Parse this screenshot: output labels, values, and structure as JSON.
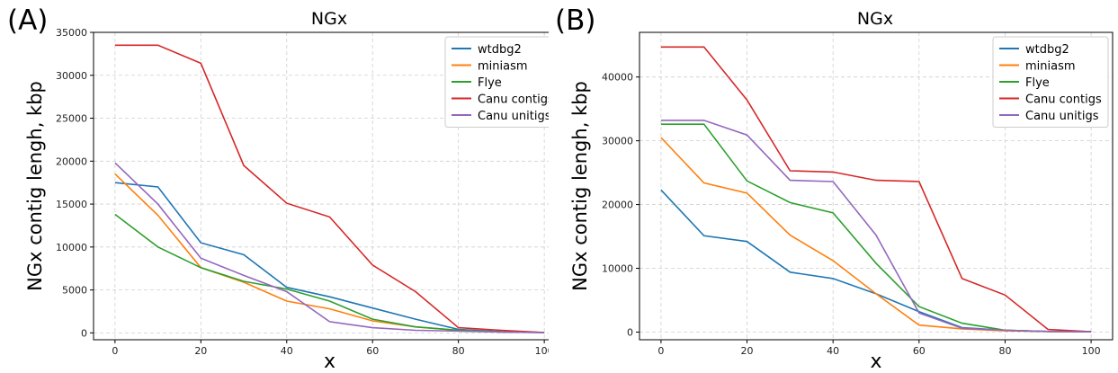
{
  "chart_data": [
    {
      "type": "line",
      "panel_label": "(A)",
      "title": "NGx",
      "xlabel": "x",
      "ylabel": "NGx contig lengh, kbp",
      "xlim": [
        -5,
        105
      ],
      "ylim": [
        -800,
        35000
      ],
      "xticks": [
        0,
        20,
        40,
        60,
        80,
        100
      ],
      "yticks": [
        0,
        5000,
        10000,
        15000,
        20000,
        25000,
        30000,
        35000
      ],
      "grid": true,
      "legend_position": "top-right",
      "x": [
        0,
        10,
        20,
        30,
        40,
        50,
        60,
        70,
        80,
        90,
        100
      ],
      "series": [
        {
          "name": "wtdbg2",
          "color": "#1f77b4",
          "values": [
            17500,
            17000,
            10500,
            9100,
            5300,
            4200,
            2900,
            1600,
            400,
            150,
            50
          ]
        },
        {
          "name": "miniasm",
          "color": "#ff7f0e",
          "values": [
            18500,
            13700,
            7600,
            5900,
            3700,
            2800,
            1400,
            700,
            300,
            100,
            50
          ]
        },
        {
          "name": "Flye",
          "color": "#2ca02c",
          "values": [
            13800,
            10000,
            7600,
            6000,
            5100,
            3700,
            1600,
            700,
            300,
            100,
            50
          ]
        },
        {
          "name": "Canu contigs",
          "color": "#d62728",
          "values": [
            33500,
            33500,
            31400,
            19500,
            15100,
            13500,
            7900,
            4800,
            600,
            300,
            50
          ]
        },
        {
          "name": "Canu unitigs",
          "color": "#9467bd",
          "values": [
            19800,
            15000,
            8700,
            6700,
            4800,
            1300,
            600,
            300,
            200,
            100,
            50
          ]
        }
      ]
    },
    {
      "type": "line",
      "panel_label": "(B)",
      "title": "NGx",
      "xlabel": "x",
      "ylabel": "NGx contig lengh, kbp",
      "xlim": [
        -5,
        105
      ],
      "ylim": [
        -1200,
        47000
      ],
      "xticks": [
        0,
        20,
        40,
        60,
        80,
        100
      ],
      "yticks": [
        0,
        10000,
        20000,
        30000,
        40000
      ],
      "grid": true,
      "legend_position": "top-right",
      "x": [
        0,
        10,
        20,
        30,
        40,
        50,
        60,
        70,
        80,
        90,
        100
      ],
      "series": [
        {
          "name": "wtdbg2",
          "color": "#1f77b4",
          "values": [
            22300,
            15100,
            14200,
            9400,
            8400,
            6000,
            3200,
            700,
            300,
            100,
            50
          ]
        },
        {
          "name": "miniasm",
          "color": "#ff7f0e",
          "values": [
            30500,
            23400,
            21800,
            15200,
            11200,
            6000,
            1100,
            500,
            200,
            100,
            50
          ]
        },
        {
          "name": "Flye",
          "color": "#2ca02c",
          "values": [
            32600,
            32600,
            23700,
            20300,
            18700,
            10800,
            4000,
            1400,
            300,
            100,
            50
          ]
        },
        {
          "name": "Canu contigs",
          "color": "#d62728",
          "values": [
            44700,
            44700,
            36400,
            25300,
            25100,
            23800,
            23600,
            8400,
            5800,
            400,
            50
          ]
        },
        {
          "name": "Canu unitigs",
          "color": "#9467bd",
          "values": [
            33200,
            33200,
            30900,
            23800,
            23600,
            15200,
            3000,
            600,
            300,
            100,
            50
          ]
        }
      ]
    }
  ]
}
